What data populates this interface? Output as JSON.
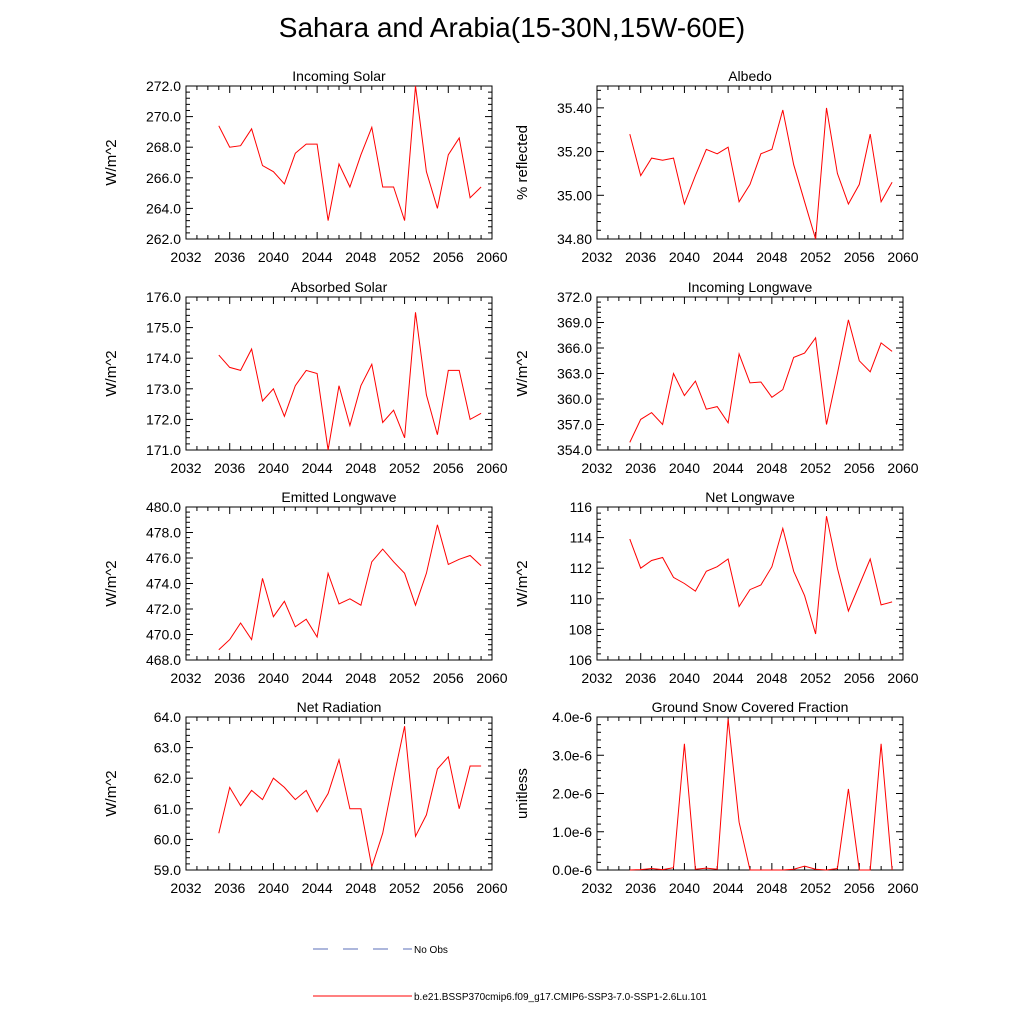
{
  "title": "Sahara and Arabia(15-30N,15W-60E)",
  "series_color": "#ff0000",
  "legend": {
    "entries": [
      {
        "label": "No Obs",
        "style": "dashed",
        "color": "#5b6fb8"
      },
      {
        "label": "b.e21.BSSP370cmip6.f09_g17.CMIP6-SSP3-7.0-SSP1-2.6Lu.101",
        "style": "solid",
        "color": "#ff0000"
      }
    ]
  },
  "chart_data": [
    {
      "type": "line",
      "title": "Incoming Solar",
      "ylabel": "W/m^2",
      "xlim": [
        2032,
        2060
      ],
      "ylim": [
        262,
        272
      ],
      "xticks": [
        "2032",
        "2036",
        "2040",
        "2044",
        "2048",
        "2052",
        "2056",
        "2060"
      ],
      "yticks": [
        "262.0",
        "264.0",
        "266.0",
        "268.0",
        "270.0",
        "272.0"
      ],
      "series": [
        {
          "x": [
            2035,
            2036,
            2037,
            2038,
            2039,
            2040,
            2041,
            2042,
            2043,
            2044,
            2045,
            2046,
            2047,
            2048,
            2049,
            2050,
            2051,
            2052,
            2053,
            2054,
            2055,
            2056,
            2057,
            2058,
            2059
          ],
          "values": [
            269.4,
            268.0,
            268.1,
            269.2,
            266.8,
            266.4,
            265.6,
            267.6,
            268.2,
            268.2,
            263.2,
            266.9,
            265.4,
            267.5,
            269.3,
            265.4,
            265.4,
            263.2,
            272.0,
            266.4,
            264.0,
            267.5,
            268.6,
            264.7,
            265.4
          ]
        }
      ]
    },
    {
      "type": "line",
      "title": "Albedo",
      "ylabel": "% reflected",
      "xlim": [
        2032,
        2060
      ],
      "ylim": [
        34.8,
        35.5
      ],
      "xticks": [
        "2032",
        "2036",
        "2040",
        "2044",
        "2048",
        "2052",
        "2056",
        "2060"
      ],
      "yticks": [
        "34.80",
        "35.00",
        "35.20",
        "35.40"
      ],
      "series": [
        {
          "x": [
            2035,
            2036,
            2037,
            2038,
            2039,
            2040,
            2041,
            2042,
            2043,
            2044,
            2045,
            2046,
            2047,
            2048,
            2049,
            2050,
            2051,
            2052,
            2053,
            2054,
            2055,
            2056,
            2057,
            2058,
            2059
          ],
          "values": [
            35.28,
            35.09,
            35.17,
            35.16,
            35.17,
            34.96,
            35.09,
            35.21,
            35.19,
            35.22,
            34.97,
            35.05,
            35.19,
            35.21,
            35.39,
            35.14,
            34.97,
            34.8,
            35.4,
            35.1,
            34.96,
            35.05,
            35.28,
            34.97,
            35.06
          ]
        }
      ]
    },
    {
      "type": "line",
      "title": "Absorbed Solar",
      "ylabel": "W/m^2",
      "xlim": [
        2032,
        2060
      ],
      "ylim": [
        171,
        176
      ],
      "xticks": [
        "2032",
        "2036",
        "2040",
        "2044",
        "2048",
        "2052",
        "2056",
        "2060"
      ],
      "yticks": [
        "171.0",
        "172.0",
        "173.0",
        "174.0",
        "175.0",
        "176.0"
      ],
      "series": [
        {
          "x": [
            2035,
            2036,
            2037,
            2038,
            2039,
            2040,
            2041,
            2042,
            2043,
            2044,
            2045,
            2046,
            2047,
            2048,
            2049,
            2050,
            2051,
            2052,
            2053,
            2054,
            2055,
            2056,
            2057,
            2058,
            2059
          ],
          "values": [
            174.1,
            173.7,
            173.6,
            174.3,
            172.6,
            173.0,
            172.1,
            173.1,
            173.6,
            173.5,
            171.0,
            173.1,
            171.8,
            173.1,
            173.8,
            171.9,
            172.3,
            171.4,
            175.5,
            172.8,
            171.5,
            173.6,
            173.6,
            172.0,
            172.2
          ]
        }
      ]
    },
    {
      "type": "line",
      "title": "Incoming Longwave",
      "ylabel": "W/m^2",
      "xlim": [
        2032,
        2060
      ],
      "ylim": [
        354,
        372
      ],
      "xticks": [
        "2032",
        "2036",
        "2040",
        "2044",
        "2048",
        "2052",
        "2056",
        "2060"
      ],
      "yticks": [
        "354.0",
        "357.0",
        "360.0",
        "363.0",
        "366.0",
        "369.0",
        "372.0"
      ],
      "series": [
        {
          "x": [
            2035,
            2036,
            2037,
            2038,
            2039,
            2040,
            2041,
            2042,
            2043,
            2044,
            2045,
            2046,
            2047,
            2048,
            2049,
            2050,
            2051,
            2052,
            2053,
            2054,
            2055,
            2056,
            2057,
            2058,
            2059
          ],
          "values": [
            354.9,
            357.6,
            358.4,
            357.0,
            363.0,
            360.4,
            362.1,
            358.8,
            359.1,
            357.2,
            365.3,
            361.9,
            362.0,
            360.2,
            361.1,
            364.9,
            365.4,
            367.2,
            357.0,
            363.0,
            369.3,
            364.5,
            363.2,
            366.6,
            365.6
          ]
        }
      ]
    },
    {
      "type": "line",
      "title": "Emitted Longwave",
      "ylabel": "W/m^2",
      "xlim": [
        2032,
        2060
      ],
      "ylim": [
        468,
        480
      ],
      "xticks": [
        "2032",
        "2036",
        "2040",
        "2044",
        "2048",
        "2052",
        "2056",
        "2060"
      ],
      "yticks": [
        "468.0",
        "470.0",
        "472.0",
        "474.0",
        "476.0",
        "478.0",
        "480.0"
      ],
      "series": [
        {
          "x": [
            2035,
            2036,
            2037,
            2038,
            2039,
            2040,
            2041,
            2042,
            2043,
            2044,
            2045,
            2046,
            2047,
            2048,
            2049,
            2050,
            2051,
            2052,
            2053,
            2054,
            2055,
            2056,
            2057,
            2058,
            2059
          ],
          "values": [
            468.8,
            469.6,
            470.9,
            469.6,
            474.4,
            471.4,
            472.6,
            470.6,
            471.2,
            469.8,
            474.8,
            472.4,
            472.8,
            472.3,
            475.7,
            476.7,
            475.7,
            474.8,
            472.3,
            474.8,
            478.6,
            475.5,
            475.9,
            476.2,
            475.4
          ]
        }
      ]
    },
    {
      "type": "line",
      "title": "Net Longwave",
      "ylabel": "W/m^2",
      "xlim": [
        2032,
        2060
      ],
      "ylim": [
        106,
        116
      ],
      "xticks": [
        "2032",
        "2036",
        "2040",
        "2044",
        "2048",
        "2052",
        "2056",
        "2060"
      ],
      "yticks": [
        "106",
        "108",
        "110",
        "112",
        "114",
        "116"
      ],
      "series": [
        {
          "x": [
            2035,
            2036,
            2037,
            2038,
            2039,
            2040,
            2041,
            2042,
            2043,
            2044,
            2045,
            2046,
            2047,
            2048,
            2049,
            2050,
            2051,
            2052,
            2053,
            2054,
            2055,
            2056,
            2057,
            2058,
            2059
          ],
          "values": [
            113.9,
            112.0,
            112.5,
            112.7,
            111.4,
            111.0,
            110.5,
            111.8,
            112.1,
            112.6,
            109.5,
            110.6,
            110.9,
            112.1,
            114.6,
            111.8,
            110.2,
            107.7,
            115.4,
            112.0,
            109.2,
            110.9,
            112.6,
            109.6,
            109.8
          ]
        }
      ]
    },
    {
      "type": "line",
      "title": "Net Radiation",
      "ylabel": "W/m^2",
      "xlim": [
        2032,
        2060
      ],
      "ylim": [
        59,
        64
      ],
      "xticks": [
        "2032",
        "2036",
        "2040",
        "2044",
        "2048",
        "2052",
        "2056",
        "2060"
      ],
      "yticks": [
        "59.0",
        "60.0",
        "61.0",
        "62.0",
        "63.0",
        "64.0"
      ],
      "series": [
        {
          "x": [
            2035,
            2036,
            2037,
            2038,
            2039,
            2040,
            2041,
            2042,
            2043,
            2044,
            2045,
            2046,
            2047,
            2048,
            2049,
            2050,
            2051,
            2052,
            2053,
            2054,
            2055,
            2056,
            2057,
            2058,
            2059
          ],
          "values": [
            60.2,
            61.7,
            61.1,
            61.6,
            61.3,
            62.0,
            61.7,
            61.3,
            61.6,
            60.9,
            61.5,
            62.6,
            61.0,
            61.0,
            59.1,
            60.2,
            62.0,
            63.7,
            60.1,
            60.8,
            62.3,
            62.7,
            61.0,
            62.4,
            62.4
          ]
        }
      ]
    },
    {
      "type": "line",
      "title": "Ground Snow Covered Fraction",
      "ylabel": "unitless",
      "xlim": [
        2032,
        2060
      ],
      "ylim": [
        0,
        4e-06
      ],
      "xticks": [
        "2032",
        "2036",
        "2040",
        "2044",
        "2048",
        "2052",
        "2056",
        "2060"
      ],
      "yticks": [
        "0.0e-6",
        "1.0e-6",
        "2.0e-6",
        "3.0e-6",
        "4.0e-6"
      ],
      "series": [
        {
          "x": [
            2035,
            2036,
            2037,
            2038,
            2039,
            2040,
            2041,
            2042,
            2043,
            2044,
            2045,
            2046,
            2047,
            2048,
            2049,
            2050,
            2051,
            2052,
            2053,
            2054,
            2055,
            2056,
            2057,
            2058,
            2059
          ],
          "values": [
            0,
            1e-08,
            4e-08,
            1e-08,
            6e-08,
            3.3e-06,
            2e-08,
            5e-08,
            2e-08,
            3.95e-06,
            1.25e-06,
            0,
            0,
            0,
            0,
            2e-08,
            1e-07,
            2e-08,
            0,
            4e-08,
            2.12e-06,
            0,
            0,
            3.3e-06,
            0
          ]
        }
      ]
    }
  ]
}
